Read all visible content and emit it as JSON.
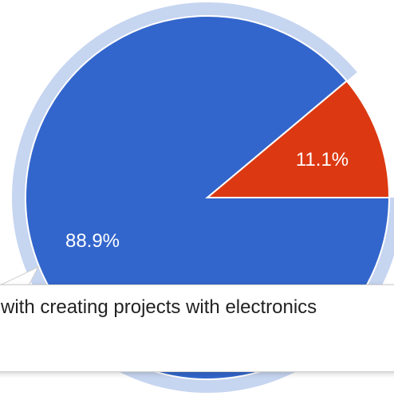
{
  "chart_data": {
    "type": "pie",
    "slices": [
      {
        "value": 88.9,
        "label": "88.9%",
        "color": "#3366cc"
      },
      {
        "value": 11.1,
        "label": "11.1%",
        "color": "#dc3912"
      }
    ],
    "highlighted_slice": 0,
    "highlight_ring_color": "#c6d5f0"
  },
  "tooltip": {
    "text": "with creating projects with electronics"
  }
}
